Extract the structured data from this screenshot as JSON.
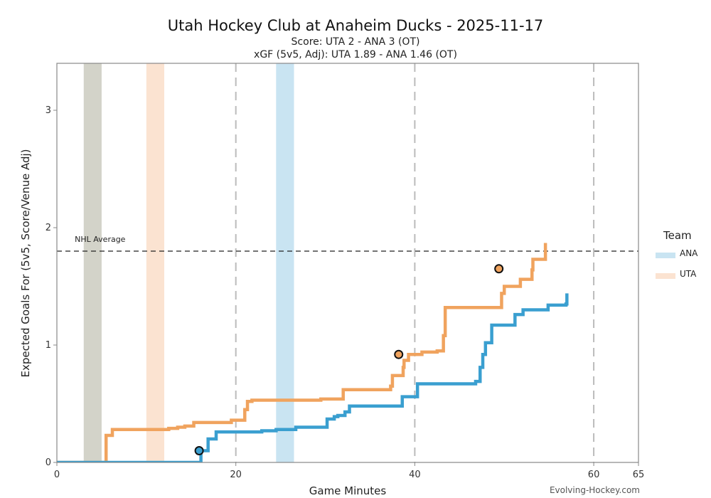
{
  "title": "Utah Hockey Club at Anaheim Ducks - 2025-11-17",
  "subtitle_score": "Score: UTA 2 - ANA 3 (OT)",
  "subtitle_xgf": "xGF (5v5, Adj): UTA 1.89 - ANA 1.46 (OT)",
  "credit": "Evolving-Hockey.com",
  "legend": {
    "title": "Team",
    "items": [
      {
        "label": "ANA",
        "color": "#c9e4f2"
      },
      {
        "label": "UTA",
        "color": "#fbe3d1"
      }
    ]
  },
  "chart_data": {
    "type": "line",
    "xlabel": "Game Minutes",
    "ylabel": "Expected Goals For (5v5, Score/Venue Adj)",
    "xlim": [
      0,
      65
    ],
    "ylim": [
      0,
      3.4
    ],
    "xticks": [
      0,
      20,
      40,
      60,
      65
    ],
    "yticks": [
      0,
      1,
      2,
      3
    ],
    "vertical_dashed_lines": [
      20,
      40,
      60
    ],
    "reference_line": {
      "label": "NHL Average",
      "y": 1.8
    },
    "shaded_periods": [
      {
        "x0": 3,
        "x1": 5,
        "color": "#d3d3c9"
      },
      {
        "x0": 10,
        "x1": 12,
        "color": "#fbe3d1"
      },
      {
        "x0": 24.5,
        "x1": 26.5,
        "color": "#c9e4f2"
      }
    ],
    "series": [
      {
        "name": "UTA",
        "color": "#f0a35e",
        "x": [
          0,
          5.4,
          5.5,
          6.2,
          12.5,
          13.5,
          14.3,
          15.3,
          19.5,
          21,
          21.3,
          21.8,
          29.5,
          32,
          37.3,
          37.5,
          38.7,
          38.8,
          39.3,
          40.8,
          42.5,
          43.2,
          43.4,
          49.7,
          50,
          51.8,
          53.1,
          53.2,
          54.6
        ],
        "y": [
          0,
          0,
          0.23,
          0.28,
          0.29,
          0.3,
          0.31,
          0.34,
          0.36,
          0.45,
          0.52,
          0.53,
          0.54,
          0.62,
          0.65,
          0.74,
          0.81,
          0.87,
          0.92,
          0.94,
          0.95,
          1.08,
          1.32,
          1.44,
          1.5,
          1.56,
          1.64,
          1.73,
          1.87
        ],
        "goals": [
          {
            "x": 38.2,
            "y": 0.92
          },
          {
            "x": 49.4,
            "y": 1.65
          }
        ]
      },
      {
        "name": "ANA",
        "color": "#3a9fd0",
        "x": [
          0,
          15.9,
          16.1,
          16.9,
          17.8,
          22.9,
          24.5,
          26.7,
          30.2,
          31.0,
          31.4,
          32.2,
          32.7,
          36.8,
          38.6,
          40.3,
          46.6,
          46.8,
          47.3,
          47.6,
          47.9,
          48.6,
          50.4,
          51.2,
          52.1,
          54.9,
          56.9,
          57.0
        ],
        "y": [
          0,
          0,
          0.1,
          0.2,
          0.26,
          0.27,
          0.28,
          0.3,
          0.37,
          0.39,
          0.4,
          0.43,
          0.48,
          0.48,
          0.56,
          0.67,
          0.67,
          0.69,
          0.81,
          0.92,
          1.02,
          1.17,
          1.17,
          1.26,
          1.3,
          1.34,
          1.35,
          1.44
        ],
        "goals": [
          {
            "x": 15.9,
            "y": 0.1
          }
        ]
      }
    ]
  }
}
